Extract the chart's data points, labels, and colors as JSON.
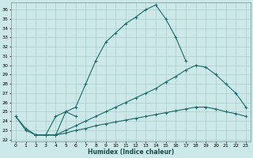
{
  "xlabel": "Humidex (Indice chaleur)",
  "background_color": "#cce8e8",
  "grid_color": "#aacccc",
  "line_color": "#1a6b6b",
  "xlim": [
    -0.5,
    23.5
  ],
  "ylim": [
    21.8,
    36.8
  ],
  "yticks": [
    22,
    23,
    24,
    25,
    26,
    27,
    28,
    29,
    30,
    31,
    32,
    33,
    34,
    35,
    36
  ],
  "xticks": [
    0,
    1,
    2,
    3,
    4,
    5,
    6,
    7,
    8,
    9,
    10,
    11,
    12,
    13,
    14,
    15,
    16,
    17,
    18,
    19,
    20,
    21,
    22,
    23
  ],
  "lines": [
    {
      "x": [
        0,
        1,
        2,
        3,
        4,
        5,
        6,
        7,
        8,
        9,
        10,
        11,
        12,
        13,
        14,
        15,
        16,
        17
      ],
      "y": [
        24.5,
        23.2,
        22.5,
        22.5,
        22.5,
        25.0,
        25.5,
        28.0,
        30.5,
        32.5,
        33.5,
        34.5,
        35.2,
        36.0,
        36.5,
        35.0,
        33.0,
        30.5
      ]
    },
    {
      "x": [
        0,
        1,
        2,
        3,
        4,
        5,
        6
      ],
      "y": [
        24.5,
        23.0,
        22.5,
        22.5,
        24.5,
        25.0,
        24.5
      ]
    },
    {
      "x": [
        2,
        3,
        4,
        5,
        6,
        7,
        8,
        9,
        10,
        11,
        12,
        13,
        14,
        15,
        16,
        17,
        18,
        19,
        20,
        21,
        22,
        23
      ],
      "y": [
        22.5,
        22.5,
        22.5,
        23.0,
        23.5,
        24.0,
        24.5,
        25.0,
        25.5,
        26.0,
        26.5,
        27.0,
        27.5,
        28.2,
        28.8,
        29.5,
        30.0,
        29.8,
        29.0,
        28.0,
        27.0,
        25.5
      ]
    },
    {
      "x": [
        2,
        3,
        4,
        5,
        6,
        7,
        8,
        9,
        10,
        11,
        12,
        13,
        14,
        15,
        16,
        17,
        18,
        19,
        20,
        21,
        22,
        23
      ],
      "y": [
        22.5,
        22.5,
        22.5,
        22.7,
        23.0,
        23.2,
        23.5,
        23.7,
        23.9,
        24.1,
        24.3,
        24.5,
        24.7,
        24.9,
        25.1,
        25.3,
        25.5,
        25.5,
        25.3,
        25.0,
        24.8,
        24.5
      ]
    }
  ]
}
